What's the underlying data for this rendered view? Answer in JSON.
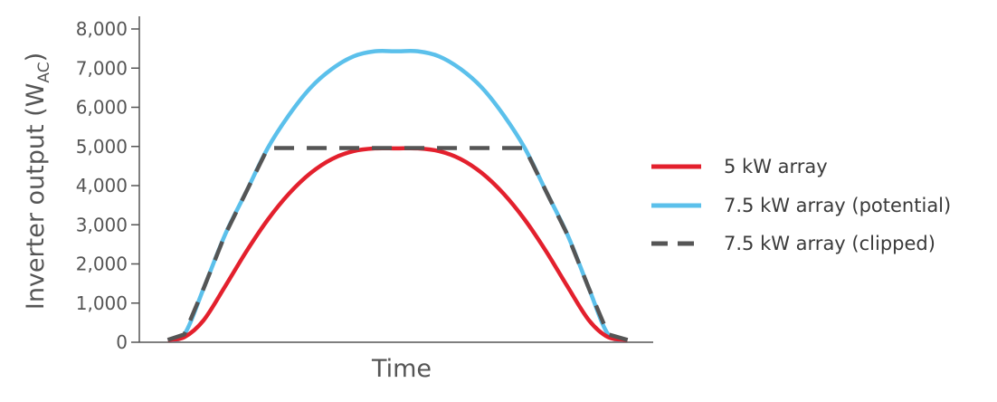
{
  "chart_data": {
    "type": "line",
    "title": "",
    "xlabel": "Time",
    "ylabel": {
      "main": "Inverter output (W",
      "sub": "AC",
      "close": ")"
    },
    "ylim": [
      0,
      8000
    ],
    "yticks": [
      0,
      1000,
      2000,
      3000,
      4000,
      5000,
      6000,
      7000,
      8000
    ],
    "ytick_labels": [
      "0",
      "1,000",
      "2,000",
      "3,000",
      "4,000",
      "5,000",
      "6,000",
      "7,000",
      "8,000"
    ],
    "xlim": [
      0,
      24
    ],
    "grid": false,
    "legend": "right",
    "series": [
      {
        "name": "5 kW array",
        "color": "#e3202d",
        "style": "solid",
        "peak": 4950,
        "x": [
          1.33,
          2.1,
          3,
          4,
          5,
          6,
          7,
          8,
          9,
          10,
          11,
          12,
          13,
          14,
          15,
          16,
          17,
          18,
          19,
          20,
          21,
          21.9,
          22.8
        ],
        "values": [
          60,
          130,
          560,
          1420,
          2320,
          3130,
          3800,
          4320,
          4680,
          4880,
          4950,
          4950,
          4950,
          4880,
          4680,
          4320,
          3800,
          3130,
          2320,
          1420,
          560,
          130,
          60
        ]
      },
      {
        "name": "7.5 kW array (potential)",
        "color": "#5bc0eb",
        "style": "solid",
        "peak": 7430,
        "x": [
          1.33,
          2.1,
          3,
          4,
          5,
          6,
          7,
          8,
          9,
          10,
          11,
          12,
          13,
          14,
          15,
          16,
          17,
          18,
          19,
          20,
          21,
          21.9,
          22.8
        ],
        "values": [
          60,
          200,
          1370,
          2740,
          3850,
          4960,
          5810,
          6500,
          6980,
          7300,
          7430,
          7430,
          7430,
          7300,
          6980,
          6500,
          5810,
          4960,
          3850,
          2740,
          1370,
          200,
          60
        ]
      },
      {
        "name": "7.5 kW array (clipped)",
        "color": "#555555",
        "style": "dashed",
        "x": [
          1.33,
          2.1,
          3,
          4,
          5,
          6,
          18,
          19,
          20,
          21,
          21.9,
          22.8
        ],
        "values": [
          60,
          200,
          1370,
          2740,
          3850,
          4960,
          4960,
          3850,
          2740,
          1370,
          200,
          60
        ]
      }
    ]
  }
}
